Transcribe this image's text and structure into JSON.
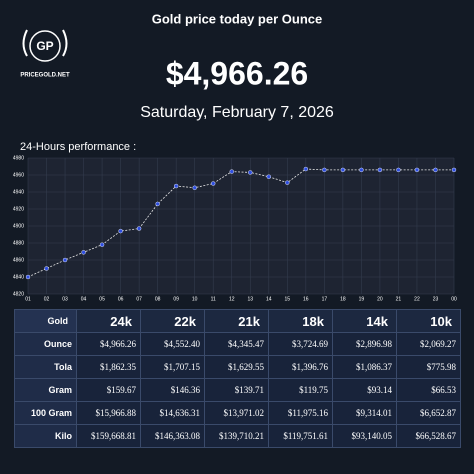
{
  "logo": {
    "initials": "GP",
    "site": "PRICEGOLD.NET"
  },
  "header": {
    "title": "Gold price today per Ounce",
    "price": "$4,966.26",
    "date": "Saturday, February 7, 2026"
  },
  "chart_label": "24-Hours performance :",
  "chart_data": {
    "type": "line",
    "categories": [
      "01",
      "02",
      "03",
      "04",
      "05",
      "06",
      "07",
      "08",
      "09",
      "10",
      "11",
      "12",
      "13",
      "14",
      "15",
      "16",
      "17",
      "18",
      "19",
      "20",
      "21",
      "22",
      "23",
      "00"
    ],
    "series": [
      {
        "name": "Gold",
        "color": "#2f4fe0",
        "values": [
          4840,
          4850,
          4860,
          4869,
          4878,
          4894,
          4897,
          4926,
          4947,
          4945,
          4950,
          4964,
          4963,
          4958,
          4951,
          4967,
          4966,
          4966,
          4966,
          4966,
          4966,
          4966,
          4966,
          4966
        ]
      }
    ],
    "ylim": [
      4820,
      4980
    ],
    "yticks": [
      4820,
      4840,
      4860,
      4880,
      4900,
      4920,
      4940,
      4960,
      4980
    ],
    "grid": true
  },
  "table": {
    "header": [
      "Gold",
      "24k",
      "22k",
      "21k",
      "18k",
      "14k",
      "10k"
    ],
    "rows": [
      [
        "Ounce",
        "$4,966.26",
        "$4,552.40",
        "$4,345.47",
        "$3,724.69",
        "$2,896.98",
        "$2,069.27"
      ],
      [
        "Tola",
        "$1,862.35",
        "$1,707.15",
        "$1,629.55",
        "$1,396.76",
        "$1,086.37",
        "$775.98"
      ],
      [
        "Gram",
        "$159.67",
        "$146.36",
        "$139.71",
        "$119.75",
        "$93.14",
        "$66.53"
      ],
      [
        "100 Gram",
        "$15,966.88",
        "$14,636.31",
        "$13,971.02",
        "$11,975.16",
        "$9,314.01",
        "$6,652.87"
      ],
      [
        "Kilo",
        "$159,668.81",
        "$146,363.08",
        "$139,710.21",
        "$119,751.61",
        "$93,140.05",
        "$66,528.67"
      ]
    ]
  }
}
